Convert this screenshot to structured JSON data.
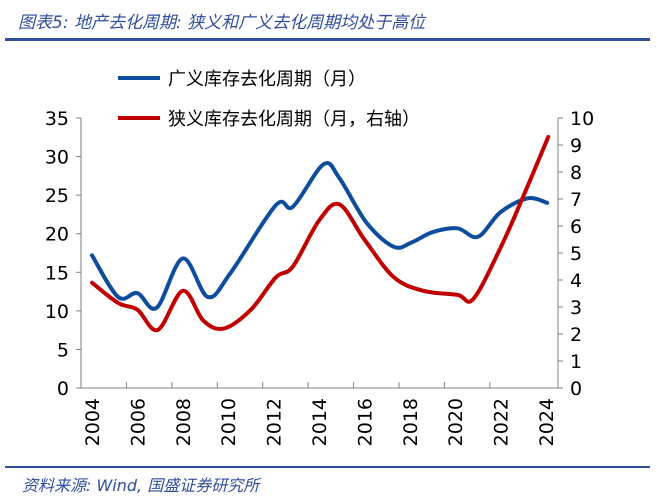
{
  "title": "图表5: 地产去化周期: 狭义和广义去化周期均处于高位",
  "source": "资料来源: Wind, 国盛证券研究所",
  "colors": {
    "broad": "#0E4C9E",
    "narrow": "#C00000",
    "header": "#2F4E9C"
  },
  "chart_data": {
    "type": "line",
    "xlim": [
      2004,
      2024
    ],
    "x_ticks": [
      "2004",
      "2006",
      "2008",
      "2010",
      "2012",
      "2014",
      "2016",
      "2018",
      "2020",
      "2022",
      "2024"
    ],
    "y_left": {
      "lim": [
        0,
        35
      ],
      "ticks": [
        "0",
        "5",
        "10",
        "15",
        "20",
        "25",
        "30",
        "35"
      ]
    },
    "y_right": {
      "lim": [
        0,
        10
      ],
      "ticks": [
        "0",
        "1",
        "2",
        "3",
        "4",
        "5",
        "6",
        "7",
        "8",
        "9",
        "10"
      ]
    },
    "grid": false,
    "legend_position": "top-left",
    "series": [
      {
        "name": "广义库存去化周期（月）",
        "axis": "left",
        "x": [
          2004.0,
          2005.15,
          2006.0,
          2006.85,
          2008.0,
          2009.1,
          2010.1,
          2012.1,
          2012.85,
          2014.2,
          2014.9,
          2016.1,
          2017.3,
          2018.1,
          2019.0,
          2020.1,
          2021.0,
          2022.0,
          2023.2,
          2024.05
        ],
        "y": [
          17.2,
          11.8,
          12.3,
          10.4,
          16.8,
          11.8,
          14.9,
          23.7,
          23.5,
          29.0,
          27.2,
          21.4,
          18.3,
          18.9,
          20.2,
          20.7,
          19.6,
          22.8,
          24.6,
          24.0
        ]
      },
      {
        "name": "狭义库存去化周期（月，右轴）",
        "axis": "right",
        "x": [
          2004.0,
          2005.15,
          2006.0,
          2006.9,
          2008.0,
          2008.9,
          2009.8,
          2011.0,
          2012.1,
          2012.85,
          2014.0,
          2014.9,
          2016.0,
          2017.3,
          2018.6,
          2020.1,
          2020.8,
          2022.0,
          2023.0,
          2024.1
        ],
        "y": [
          3.9,
          3.15,
          2.9,
          2.15,
          3.6,
          2.5,
          2.2,
          2.9,
          4.1,
          4.5,
          6.2,
          6.8,
          5.5,
          4.1,
          3.6,
          3.45,
          3.3,
          5.2,
          7.1,
          9.3
        ]
      }
    ]
  }
}
